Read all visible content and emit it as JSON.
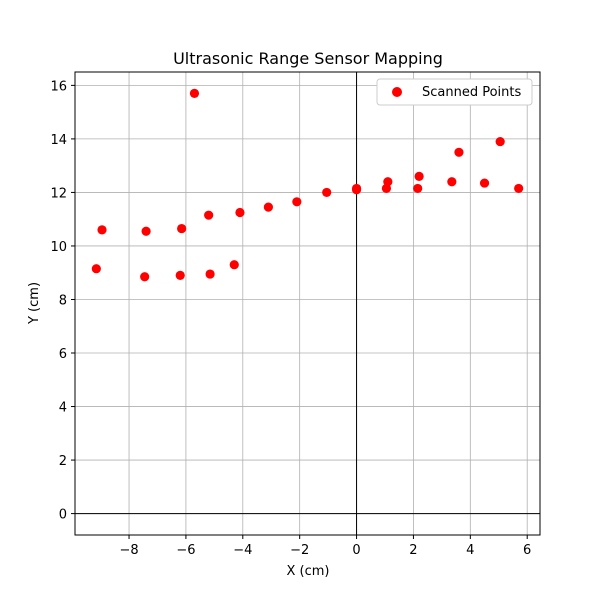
{
  "chart_data": {
    "type": "scatter",
    "title": "Ultrasonic Range Sensor Mapping",
    "xlabel": "X (cm)",
    "ylabel": "Y (cm)",
    "xlim": [
      -9.9,
      6.45
    ],
    "ylim": [
      -0.8,
      16.5
    ],
    "xticks": [
      -8,
      -6,
      -4,
      -2,
      0,
      2,
      4,
      6
    ],
    "yticks": [
      0,
      2,
      4,
      6,
      8,
      10,
      12,
      14,
      16
    ],
    "xtick_labels": [
      "−8",
      "−6",
      "−4",
      "−2",
      "0",
      "2",
      "4",
      "6"
    ],
    "ytick_labels": [
      "0",
      "2",
      "4",
      "6",
      "8",
      "10",
      "12",
      "14",
      "16"
    ],
    "grid": true,
    "zero_lines": true,
    "legend_position": "top-right",
    "series": [
      {
        "name": "Scanned Points",
        "color": "#ff0000",
        "marker": "circle",
        "points": [
          {
            "x": -9.15,
            "y": 9.15
          },
          {
            "x": -8.95,
            "y": 10.6
          },
          {
            "x": -7.45,
            "y": 8.85
          },
          {
            "x": -7.4,
            "y": 10.55
          },
          {
            "x": -6.2,
            "y": 8.9
          },
          {
            "x": -6.15,
            "y": 10.65
          },
          {
            "x": -5.7,
            "y": 15.7
          },
          {
            "x": -5.15,
            "y": 8.95
          },
          {
            "x": -5.2,
            "y": 11.15
          },
          {
            "x": -4.3,
            "y": 9.3
          },
          {
            "x": -4.1,
            "y": 11.25
          },
          {
            "x": -3.1,
            "y": 11.45
          },
          {
            "x": -2.1,
            "y": 11.65
          },
          {
            "x": -1.05,
            "y": 12.0
          },
          {
            "x": 0.0,
            "y": 12.1
          },
          {
            "x": 0.0,
            "y": 12.15
          },
          {
            "x": 1.05,
            "y": 12.15
          },
          {
            "x": 1.1,
            "y": 12.4
          },
          {
            "x": 2.15,
            "y": 12.15
          },
          {
            "x": 2.2,
            "y": 12.6
          },
          {
            "x": 3.35,
            "y": 12.4
          },
          {
            "x": 3.6,
            "y": 13.5
          },
          {
            "x": 4.5,
            "y": 12.35
          },
          {
            "x": 5.05,
            "y": 13.9
          },
          {
            "x": 5.7,
            "y": 12.15
          }
        ]
      }
    ]
  }
}
